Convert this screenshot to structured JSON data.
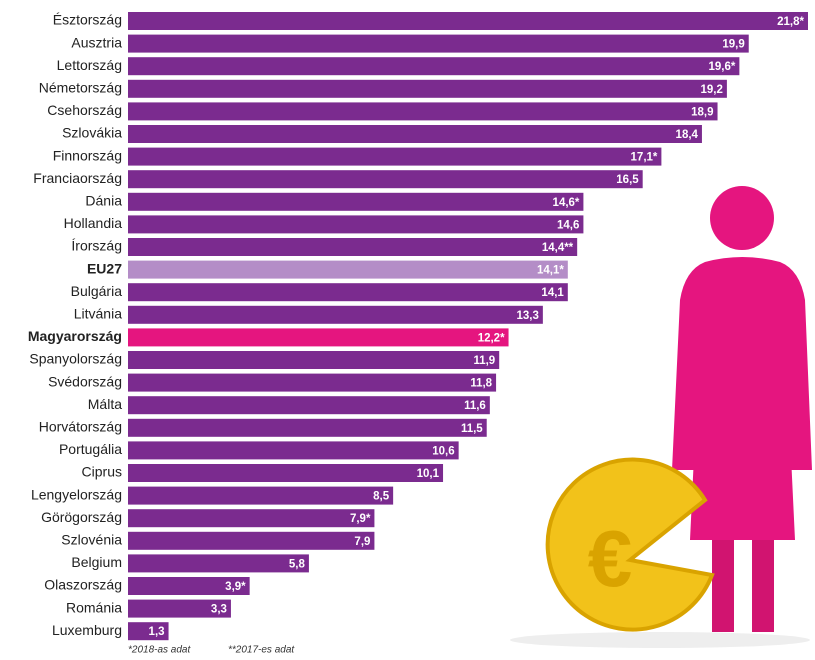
{
  "chart_data": {
    "type": "bar",
    "orientation": "horizontal",
    "categories": [
      "Észtország",
      "Ausztria",
      "Lettország",
      "Németország",
      "Csehország",
      "Szlovákia",
      "Finnország",
      "Franciaország",
      "Dánia",
      "Hollandia",
      "Írország",
      "EU27",
      "Bulgária",
      "Litvánia",
      "Magyarország",
      "Spanyolország",
      "Svédország",
      "Málta",
      "Horvátország",
      "Portugália",
      "Ciprus",
      "Lengyelország",
      "Görögország",
      "Szlovénia",
      "Belgium",
      "Olaszország",
      "Románia",
      "Luxemburg"
    ],
    "values": [
      21.8,
      19.9,
      19.6,
      19.2,
      18.9,
      18.4,
      17.1,
      16.5,
      14.6,
      14.6,
      14.4,
      14.1,
      14.1,
      13.3,
      12.2,
      11.9,
      11.8,
      11.6,
      11.5,
      10.6,
      10.1,
      8.5,
      7.9,
      7.9,
      5.8,
      3.9,
      3.3,
      1.3
    ],
    "value_labels": [
      "21,8*",
      "19,9",
      "19,6*",
      "19,2",
      "18,9",
      "18,4",
      "17,1*",
      "16,5",
      "14,6*",
      "14,6",
      "14,4**",
      "14,1*",
      "14,1",
      "13,3",
      "12,2*",
      "11,9",
      "11,8",
      "11,6",
      "11,5",
      "10,6",
      "10,1",
      "8,5",
      "7,9*",
      "7,9",
      "5,8",
      "3,9*",
      "3,3",
      "1,3"
    ],
    "color": "#7b2b8f",
    "colors": [
      "#7b2b8f",
      "#7b2b8f",
      "#7b2b8f",
      "#7b2b8f",
      "#7b2b8f",
      "#7b2b8f",
      "#7b2b8f",
      "#7b2b8f",
      "#7b2b8f",
      "#7b2b8f",
      "#7b2b8f",
      "#b48dc7",
      "#7b2b8f",
      "#7b2b8f",
      "#e5157f",
      "#7b2b8f",
      "#7b2b8f",
      "#7b2b8f",
      "#7b2b8f",
      "#7b2b8f",
      "#7b2b8f",
      "#7b2b8f",
      "#7b2b8f",
      "#7b2b8f",
      "#7b2b8f",
      "#7b2b8f",
      "#7b2b8f",
      "#7b2b8f"
    ],
    "footnotes": [
      "*2018-as adat",
      "**2017-es adat"
    ]
  }
}
